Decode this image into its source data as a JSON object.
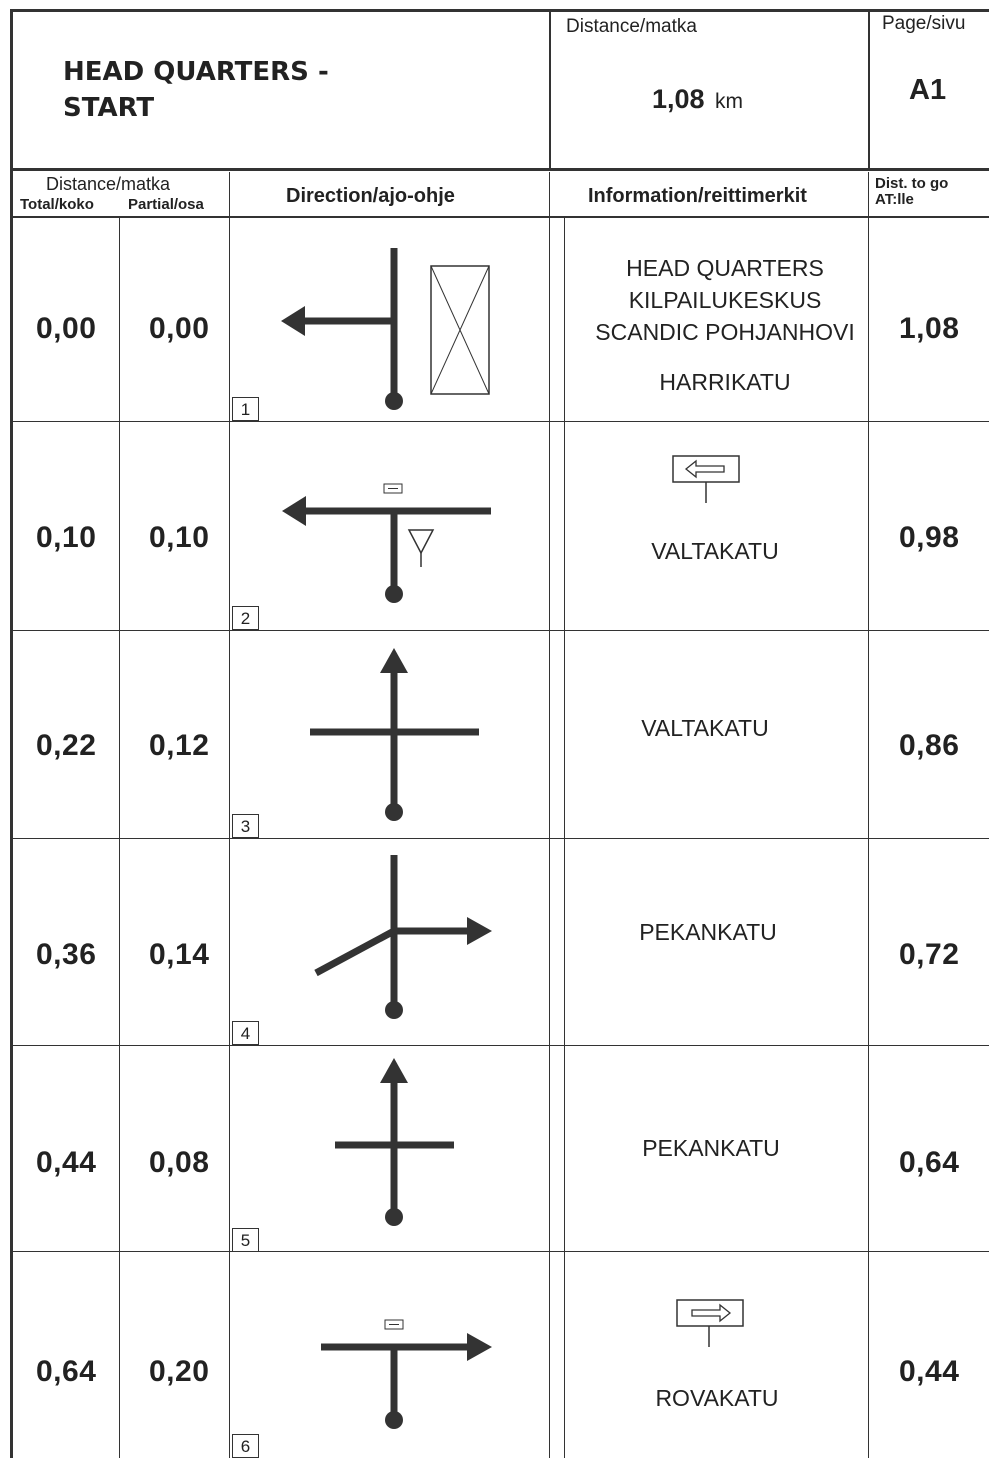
{
  "header": {
    "title_line1": "HEAD QUARTERS -",
    "title_line2": "START",
    "distance_label": "Distance/matka",
    "distance_value": "1,08",
    "distance_unit": "km",
    "page_label": "Page/sivu",
    "page_value": "A1"
  },
  "columns": {
    "distance_group": "Distance/matka",
    "total": "Total/koko",
    "partial": "Partial/osa",
    "direction": "Direction/ajo-ohje",
    "information": "Information/reittimerkit",
    "dist_to_go_1": "Dist. to go",
    "dist_to_go_2": "AT:lle"
  },
  "rows": [
    {
      "step": "1",
      "total": "0,00",
      "partial": "0,00",
      "info": [
        "HEAD QUARTERS",
        "KILPAILUKESKUS",
        "SCANDIC POHJANHOVI",
        "HARRIKATU"
      ],
      "to_go": "1,08",
      "diagram": "left-with-building"
    },
    {
      "step": "2",
      "total": "0,10",
      "partial": "0,10",
      "info": [
        "VALTAKATU"
      ],
      "to_go": "0,98",
      "diagram": "left-t-yield",
      "sign": "arrow-left-sign"
    },
    {
      "step": "3",
      "total": "0,22",
      "partial": "0,12",
      "info": [
        "VALTAKATU"
      ],
      "to_go": "0,86",
      "diagram": "straight-cross"
    },
    {
      "step": "4",
      "total": "0,36",
      "partial": "0,14",
      "info": [
        "PEKANKATU"
      ],
      "to_go": "0,72",
      "diagram": "right-angled"
    },
    {
      "step": "5",
      "total": "0,44",
      "partial": "0,08",
      "info": [
        "PEKANKATU"
      ],
      "to_go": "0,64",
      "diagram": "straight-cross"
    },
    {
      "step": "6",
      "total": "0,64",
      "partial": "0,20",
      "info": [
        "ROVAKATU"
      ],
      "to_go": "0,44",
      "diagram": "right-t",
      "sign": "arrow-right-sign"
    }
  ]
}
